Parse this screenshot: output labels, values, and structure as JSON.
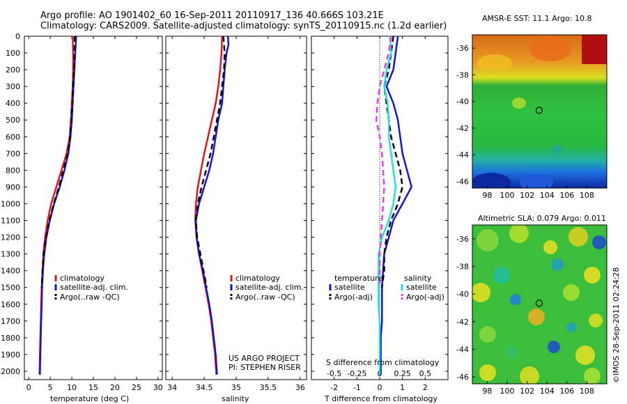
{
  "header": {
    "line1": "Argo profile: AO 1901402_60 16-Sep-2011 20110917_136 40.666S 103.21E",
    "line2": "Climatology: CARS2009. Satellite-adjusted climatology: synTS_20110915.nc (1.2d earlier)"
  },
  "footer": {
    "project": "US ARGO PROJECT",
    "pi": "PI: STEPHEN RISER",
    "stamp": "©IMOS 28-Sep-2011 02:24:28"
  },
  "colors": {
    "climatology": "#e8131b",
    "satellite": "#1414d4",
    "argo": "#000000",
    "salinity_satellite": "#22e0e0",
    "salinity_argo": "#e040e0"
  },
  "chart_data": [
    {
      "type": "line",
      "name": "temperature",
      "xlabel": "temperature (deg C)",
      "xlim": [
        -1,
        31
      ],
      "xticks": [
        0,
        5,
        10,
        15,
        20,
        25,
        30
      ],
      "ylim": [
        0,
        2050
      ],
      "yticks": [
        0,
        100,
        200,
        300,
        400,
        500,
        600,
        700,
        800,
        900,
        1000,
        1100,
        1200,
        1300,
        1400,
        1500,
        1600,
        1700,
        1800,
        1900,
        2000
      ],
      "series": [
        {
          "name": "climatology",
          "color": "#e8131b",
          "points": [
            [
              10.2,
              0
            ],
            [
              10.3,
              100
            ],
            [
              10.3,
              200
            ],
            [
              10.2,
              300
            ],
            [
              10.0,
              400
            ],
            [
              9.8,
              500
            ],
            [
              9.5,
              600
            ],
            [
              8.8,
              700
            ],
            [
              7.6,
              800
            ],
            [
              6.4,
              900
            ],
            [
              5.2,
              1000
            ],
            [
              4.4,
              1100
            ],
            [
              3.8,
              1200
            ],
            [
              3.4,
              1300
            ],
            [
              3.2,
              1400
            ],
            [
              3.0,
              1500
            ],
            [
              2.9,
              1600
            ],
            [
              2.8,
              1700
            ],
            [
              2.7,
              1800
            ],
            [
              2.6,
              1900
            ],
            [
              2.5,
              2020
            ]
          ]
        },
        {
          "name": "satellite-adj. clim.",
          "color": "#1414d4",
          "points": [
            [
              11.0,
              0
            ],
            [
              10.8,
              100
            ],
            [
              10.6,
              200
            ],
            [
              10.4,
              300
            ],
            [
              10.2,
              400
            ],
            [
              10.0,
              500
            ],
            [
              9.7,
              600
            ],
            [
              9.2,
              700
            ],
            [
              8.3,
              800
            ],
            [
              7.2,
              900
            ],
            [
              5.9,
              1000
            ],
            [
              4.9,
              1100
            ],
            [
              4.1,
              1200
            ],
            [
              3.6,
              1300
            ],
            [
              3.3,
              1400
            ],
            [
              3.1,
              1500
            ],
            [
              3.0,
              1600
            ],
            [
              2.9,
              1700
            ],
            [
              2.8,
              1800
            ],
            [
              2.7,
              1900
            ],
            [
              2.6,
              2020
            ]
          ]
        },
        {
          "name": "Argo(..raw -QC)",
          "color": "#000000",
          "dash": true,
          "points": [
            [
              10.7,
              0
            ],
            [
              10.6,
              100
            ],
            [
              10.5,
              200
            ],
            [
              10.3,
              300
            ],
            [
              10.1,
              400
            ],
            [
              9.9,
              500
            ],
            [
              9.6,
              600
            ],
            [
              9.0,
              700
            ],
            [
              8.0,
              800
            ],
            [
              7.0,
              900
            ],
            [
              5.8,
              1000
            ],
            [
              4.8,
              1100
            ],
            [
              4.0,
              1200
            ],
            [
              3.5,
              1300
            ],
            [
              3.2,
              1400
            ],
            [
              3.0,
              1500
            ]
          ]
        }
      ],
      "legend": [
        "climatology",
        "satellite-adj. clim.",
        "Argo(..raw -QC)"
      ]
    },
    {
      "type": "line",
      "name": "salinity",
      "xlabel": "salinity",
      "xlim": [
        33.9,
        36.1
      ],
      "xticks": [
        34,
        34.5,
        35,
        35.5,
        36
      ],
      "ylim": [
        0,
        2050
      ],
      "series": [
        {
          "name": "climatology",
          "color": "#e8131b",
          "points": [
            [
              34.78,
              0
            ],
            [
              34.77,
              100
            ],
            [
              34.75,
              200
            ],
            [
              34.72,
              300
            ],
            [
              34.68,
              400
            ],
            [
              34.62,
              500
            ],
            [
              34.56,
              600
            ],
            [
              34.5,
              700
            ],
            [
              34.45,
              800
            ],
            [
              34.4,
              900
            ],
            [
              34.37,
              1000
            ],
            [
              34.36,
              1100
            ],
            [
              34.38,
              1200
            ],
            [
              34.42,
              1300
            ],
            [
              34.47,
              1400
            ],
            [
              34.52,
              1500
            ],
            [
              34.57,
              1600
            ],
            [
              34.61,
              1700
            ],
            [
              34.64,
              1800
            ],
            [
              34.67,
              1900
            ],
            [
              34.69,
              2020
            ]
          ]
        },
        {
          "name": "satellite-adj. clim.",
          "color": "#1414d4",
          "points": [
            [
              34.87,
              0
            ],
            [
              34.88,
              50
            ],
            [
              34.85,
              100
            ],
            [
              34.82,
              200
            ],
            [
              34.8,
              300
            ],
            [
              34.78,
              400
            ],
            [
              34.72,
              500
            ],
            [
              34.68,
              600
            ],
            [
              34.64,
              700
            ],
            [
              34.58,
              800
            ],
            [
              34.5,
              900
            ],
            [
              34.42,
              1000
            ],
            [
              34.37,
              1100
            ],
            [
              34.38,
              1200
            ],
            [
              34.42,
              1300
            ],
            [
              34.48,
              1400
            ],
            [
              34.53,
              1500
            ],
            [
              34.58,
              1600
            ],
            [
              34.62,
              1700
            ],
            [
              34.65,
              1800
            ],
            [
              34.68,
              1900
            ],
            [
              34.7,
              2020
            ]
          ]
        },
        {
          "name": "Argo(..raw -QC)",
          "color": "#000000",
          "dash": true,
          "points": [
            [
              34.8,
              0
            ],
            [
              34.82,
              100
            ],
            [
              34.81,
              200
            ],
            [
              34.78,
              300
            ],
            [
              34.75,
              400
            ],
            [
              34.7,
              500
            ],
            [
              34.65,
              600
            ],
            [
              34.6,
              700
            ],
            [
              34.53,
              800
            ],
            [
              34.46,
              900
            ],
            [
              34.4,
              1000
            ],
            [
              34.37,
              1100
            ],
            [
              34.39,
              1200
            ],
            [
              34.44,
              1300
            ],
            [
              34.49,
              1400
            ],
            [
              34.54,
              1500
            ]
          ]
        }
      ],
      "legend": [
        "climatology",
        "satellite-adj. clim.",
        "Argo(..raw -QC)"
      ]
    },
    {
      "type": "line",
      "name": "differences",
      "xlabel": "T difference from climatology",
      "xlabel_top": "S difference from climatology",
      "xlim": [
        -3,
        3
      ],
      "xticks": [
        -2,
        -1,
        0,
        1,
        2
      ],
      "xticks_s": [
        -0.5,
        -0.25,
        0,
        0.25,
        0.5
      ],
      "ylim": [
        0,
        2050
      ],
      "series": [
        {
          "name": "temperature satellite",
          "color": "#1414d4",
          "points": [
            [
              0.8,
              0
            ],
            [
              0.7,
              100
            ],
            [
              0.6,
              200
            ],
            [
              0.3,
              300
            ],
            [
              0.6,
              400
            ],
            [
              0.8,
              500
            ],
            [
              0.9,
              600
            ],
            [
              1.0,
              700
            ],
            [
              1.2,
              800
            ],
            [
              1.4,
              900
            ],
            [
              1.0,
              1000
            ],
            [
              0.6,
              1100
            ],
            [
              0.4,
              1200
            ],
            [
              0.2,
              1300
            ],
            [
              0.15,
              1400
            ],
            [
              0.1,
              1500
            ],
            [
              0.1,
              1600
            ],
            [
              0.1,
              1700
            ],
            [
              0.05,
              1800
            ],
            [
              0.05,
              1900
            ],
            [
              0.05,
              2020
            ]
          ]
        },
        {
          "name": "temperature Argo(-adj)",
          "color": "#000000",
          "dash": true,
          "points": [
            [
              0.6,
              0
            ],
            [
              0.5,
              100
            ],
            [
              0.4,
              200
            ],
            [
              0.2,
              300
            ],
            [
              0.3,
              400
            ],
            [
              0.4,
              500
            ],
            [
              0.5,
              600
            ],
            [
              0.7,
              700
            ],
            [
              0.9,
              800
            ],
            [
              1.0,
              900
            ],
            [
              0.8,
              1000
            ],
            [
              0.5,
              1100
            ],
            [
              0.3,
              1200
            ],
            [
              0.2,
              1300
            ],
            [
              0.2,
              1400
            ],
            [
              0.1,
              1500
            ]
          ]
        },
        {
          "name": "salinity satellite",
          "color": "#22e0e0",
          "points": [
            [
              0.45,
              0
            ],
            [
              0.5,
              100
            ],
            [
              0.3,
              200
            ],
            [
              0.2,
              300
            ],
            [
              0.35,
              400
            ],
            [
              0.4,
              500
            ],
            [
              0.4,
              600
            ],
            [
              0.5,
              700
            ],
            [
              0.6,
              800
            ],
            [
              0.7,
              900
            ],
            [
              0.6,
              1000
            ],
            [
              0.4,
              1100
            ],
            [
              0.1,
              1200
            ],
            [
              -0.05,
              1300
            ],
            [
              -0.05,
              1400
            ],
            [
              -0.05,
              1500
            ],
            [
              -0.05,
              1600
            ],
            [
              0.0,
              1700
            ],
            [
              0.0,
              1800
            ],
            [
              0.0,
              1900
            ],
            [
              0.0,
              2020
            ]
          ]
        },
        {
          "name": "salinity Argo(-adj)",
          "color": "#e040e0",
          "dash": true,
          "points": [
            [
              0.5,
              0
            ],
            [
              0.4,
              100
            ],
            [
              0.2,
              200
            ],
            [
              0.0,
              300
            ],
            [
              -0.1,
              400
            ],
            [
              -0.15,
              500
            ],
            [
              0.0,
              600
            ],
            [
              0.1,
              700
            ],
            [
              0.15,
              800
            ],
            [
              0.2,
              900
            ],
            [
              0.15,
              1000
            ],
            [
              0.1,
              1100
            ],
            [
              0.05,
              1200
            ],
            [
              0.0,
              1300
            ],
            [
              0.0,
              1400
            ],
            [
              0.0,
              1500
            ]
          ]
        }
      ],
      "legend": {
        "temperature_title": "temperature",
        "salinity_title": "salinity",
        "items": [
          "satellite",
          "Argo(-adj)",
          "satellite",
          "Argo(-adj)"
        ]
      }
    },
    {
      "type": "heatmap",
      "name": "sst_map",
      "title": "AMSR-E SST: 11.1 Argo: 10.8",
      "xticks": [
        98,
        100,
        102,
        104,
        106,
        108
      ],
      "yticks": [
        -36,
        -38,
        -40,
        -42,
        -44,
        -46
      ],
      "xlim": [
        96.5,
        110
      ],
      "ylim": [
        -46.5,
        -35
      ],
      "marker": {
        "lon": 103.21,
        "lat": -40.666
      }
    },
    {
      "type": "heatmap",
      "name": "sla_map",
      "title": "Altimetric SLA: 0.079 Argo: 0.011",
      "xticks": [
        98,
        100,
        102,
        104,
        106,
        108
      ],
      "yticks": [
        -36,
        -38,
        -40,
        -42,
        -44,
        -46
      ],
      "xlim": [
        96.5,
        110
      ],
      "ylim": [
        -46.5,
        -35
      ],
      "marker": {
        "lon": 103.21,
        "lat": -40.666
      }
    }
  ]
}
